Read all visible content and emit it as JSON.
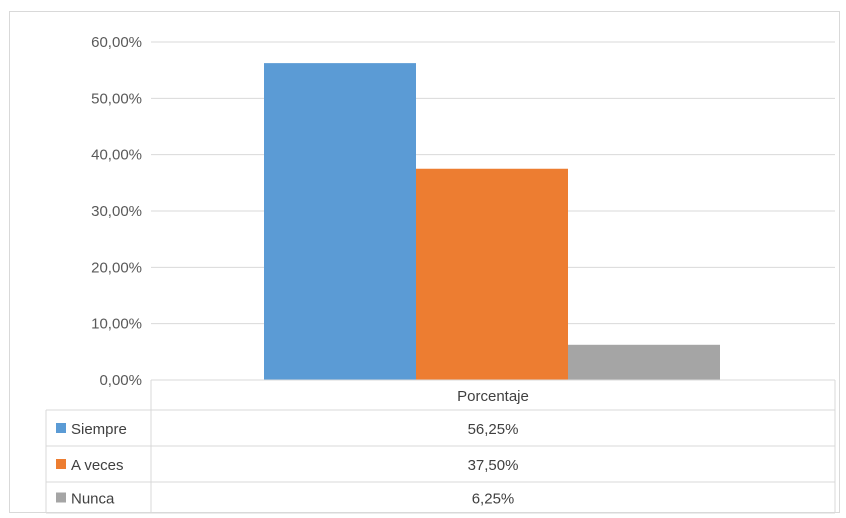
{
  "chart_data": {
    "type": "bar",
    "categories": [
      "Porcentaje"
    ],
    "series": [
      {
        "name": "Siempre",
        "values": [
          56.25
        ],
        "label": "56,25%",
        "color": "#5b9bd5"
      },
      {
        "name": "A veces",
        "values": [
          37.5
        ],
        "label": "37,50%",
        "color": "#ed7d31"
      },
      {
        "name": "Nunca",
        "values": [
          6.25
        ],
        "label": "6,25%",
        "color": "#a5a5a5"
      }
    ],
    "ylim": [
      0,
      60
    ],
    "yticks": [
      0,
      10,
      20,
      30,
      40,
      50,
      60
    ],
    "ytick_labels": [
      "0,00%",
      "10,00%",
      "20,00%",
      "30,00%",
      "40,00%",
      "50,00%",
      "60,00%"
    ],
    "grid": true,
    "legend": "data-table"
  }
}
